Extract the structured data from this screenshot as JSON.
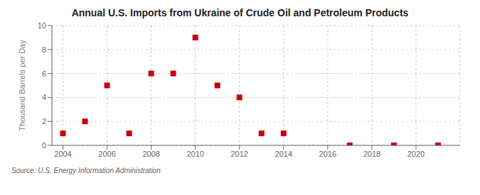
{
  "chart_data": {
    "type": "scatter",
    "title": "Annual U.S. Imports from Ukraine of Crude Oil and Petroleum Products",
    "y_label": "Thousand Barrels per Day",
    "source": "Source: U.S. Energy Information Administration",
    "x": [
      2004,
      2005,
      2006,
      2007,
      2008,
      2009,
      2010,
      2011,
      2012,
      2013,
      2014,
      2017,
      2019,
      2021
    ],
    "values": [
      1,
      2,
      5,
      1,
      6,
      6,
      9,
      5,
      4,
      1,
      1,
      0,
      0,
      0
    ],
    "color": "#cc0000",
    "marker": "square",
    "xlim": [
      2003.5,
      2022
    ],
    "xticks": [
      2004,
      2006,
      2008,
      2010,
      2012,
      2014,
      2016,
      2018,
      2020
    ],
    "ylim": [
      0,
      10
    ],
    "yticks": [
      0,
      2,
      4,
      6,
      8,
      10
    ],
    "grid": true
  }
}
